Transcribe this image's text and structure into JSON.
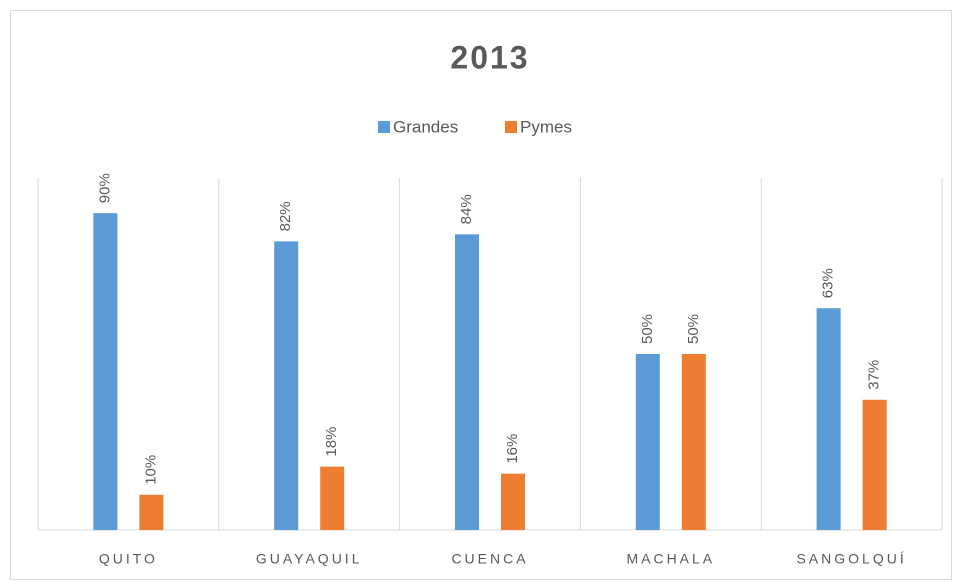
{
  "chart_data": {
    "type": "bar",
    "title": "2013",
    "categories": [
      "QUITO",
      "GUAYAQUIL",
      "CUENCA",
      "MACHALA",
      "SANGOLQUÍ"
    ],
    "series": [
      {
        "name": "Grandes",
        "color": "#5b9bd5",
        "values": [
          90,
          82,
          84,
          50,
          63
        ],
        "value_labels": [
          "90%",
          "82%",
          "84%",
          "50%",
          "63%"
        ]
      },
      {
        "name": "Pymes",
        "color": "#ed7d31",
        "values": [
          10,
          18,
          16,
          50,
          37
        ],
        "value_labels": [
          "10%",
          "18%",
          "16%",
          "50%",
          "37%"
        ]
      }
    ],
    "ylim": [
      0,
      100
    ],
    "legend": "top"
  }
}
